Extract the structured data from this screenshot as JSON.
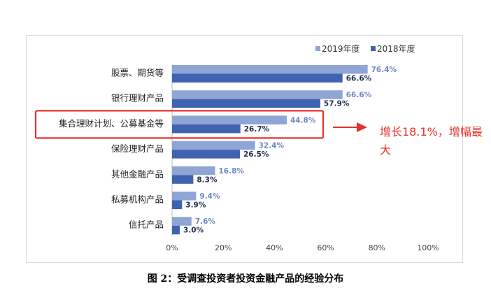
{
  "caption": "图 2：受调查投资者投资金融产品的经验分布",
  "annotation": "增长18.1%，增幅最大",
  "colors": {
    "s2019": "#8ea5d6",
    "s2018": "#3f63b0",
    "highlight": "#e8302a",
    "label2019": "#6d87c4",
    "label2018": "#1f2d4d"
  },
  "chart_data": {
    "type": "bar",
    "orientation": "horizontal",
    "categories": [
      "股票、期货等",
      "银行理财产品",
      "集合理财计划、公募基金等",
      "保险理财产品",
      "其他金融产品",
      "私募机构产品",
      "信托产品"
    ],
    "series": [
      {
        "name": "2019年度",
        "values": [
          76.4,
          66.6,
          44.8,
          32.4,
          16.8,
          9.4,
          7.6
        ],
        "labels": [
          "76.4%",
          "66.6%",
          "44.8%",
          "32.4%",
          "16.8%",
          "9.4%",
          "7.6%"
        ]
      },
      {
        "name": "2018年度",
        "values": [
          66.6,
          57.9,
          26.7,
          26.5,
          8.3,
          3.9,
          3.0
        ],
        "labels": [
          "66.6%",
          "57.9%",
          "26.7%",
          "26.5%",
          "8.3%",
          "3.9%",
          "3.0%"
        ]
      }
    ],
    "xlim": [
      0,
      100
    ],
    "xticks": [
      "0%",
      "20%",
      "40%",
      "60%",
      "80%",
      "100%"
    ],
    "legend_position": "top-right",
    "highlighted_category": "集合理财计划、公募基金等",
    "grid": false
  }
}
